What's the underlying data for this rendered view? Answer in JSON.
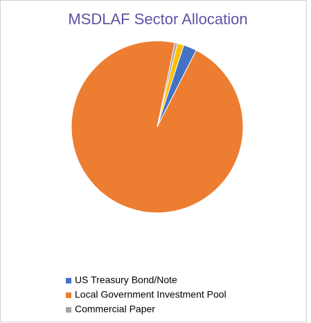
{
  "chart_data": {
    "type": "pie",
    "title": "MSDLAF Sector Allocation",
    "categories": [
      "US Treasury Bond/Note",
      "Local Government Investment Pool",
      "Commercial Paper",
      null
    ],
    "values": [
      2.5,
      95.8,
      0.5,
      1.2
    ],
    "colors": [
      "#4472c4",
      "#ed7d31",
      "#a5a5a5",
      "#ffc000"
    ],
    "legend": "bottom"
  }
}
